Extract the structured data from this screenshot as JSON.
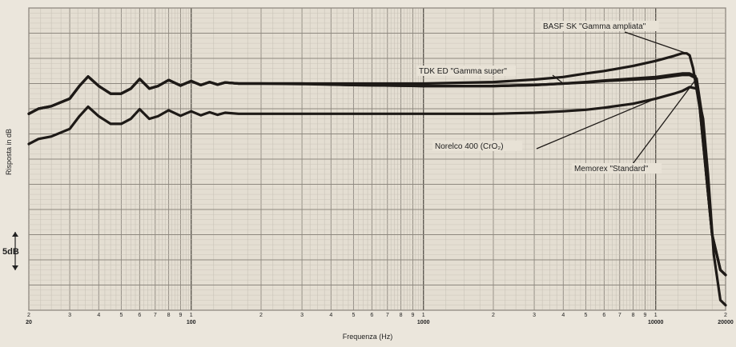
{
  "chart_data": {
    "type": "line",
    "title": "",
    "xlabel": "Frequenza (Hz)",
    "ylabel": "Risposta in dB",
    "x_scale": "log",
    "xlim": [
      20,
      20000
    ],
    "ylim": [
      -45,
      15
    ],
    "grid": true,
    "scale_marker": "5dB",
    "x_ticks": [
      {
        "value": 20,
        "label": "2\n20"
      },
      {
        "value": 30,
        "label": "3"
      },
      {
        "value": 40,
        "label": "4"
      },
      {
        "value": 50,
        "label": "5"
      },
      {
        "value": 60,
        "label": "6"
      },
      {
        "value": 70,
        "label": "7"
      },
      {
        "value": 80,
        "label": "8"
      },
      {
        "value": 90,
        "label": "9"
      },
      {
        "value": 100,
        "label": "1\n100"
      },
      {
        "value": 200,
        "label": "2"
      },
      {
        "value": 300,
        "label": "3"
      },
      {
        "value": 400,
        "label": "4"
      },
      {
        "value": 500,
        "label": "5"
      },
      {
        "value": 600,
        "label": "6"
      },
      {
        "value": 700,
        "label": "7"
      },
      {
        "value": 800,
        "label": "8"
      },
      {
        "value": 900,
        "label": "9"
      },
      {
        "value": 1000,
        "label": "1\n1000"
      },
      {
        "value": 2000,
        "label": "2"
      },
      {
        "value": 3000,
        "label": "3"
      },
      {
        "value": 4000,
        "label": "4"
      },
      {
        "value": 5000,
        "label": "5"
      },
      {
        "value": 6000,
        "label": "6"
      },
      {
        "value": 7000,
        "label": "7"
      },
      {
        "value": 8000,
        "label": "8"
      },
      {
        "value": 9000,
        "label": "9"
      },
      {
        "value": 10000,
        "label": "1\n10000"
      },
      {
        "value": 20000,
        "label": "2\n20000"
      }
    ],
    "series": [
      {
        "name": "BASF SK \"Gamma ampliata\"",
        "color": "#1e1a17",
        "points": [
          [
            20,
            -6
          ],
          [
            22,
            -5
          ],
          [
            25,
            -4.5
          ],
          [
            30,
            -3
          ],
          [
            33,
            -0.5
          ],
          [
            36,
            1.4
          ],
          [
            40,
            -0.5
          ],
          [
            45,
            -2
          ],
          [
            50,
            -2
          ],
          [
            55,
            -1
          ],
          [
            60,
            0.9
          ],
          [
            66,
            -1
          ],
          [
            72,
            -0.5
          ],
          [
            80,
            0.7
          ],
          [
            90,
            -0.4
          ],
          [
            100,
            0.5
          ],
          [
            110,
            -0.3
          ],
          [
            120,
            0.3
          ],
          [
            130,
            -0.2
          ],
          [
            140,
            0.2
          ],
          [
            160,
            0
          ],
          [
            200,
            0
          ],
          [
            300,
            0
          ],
          [
            500,
            0
          ],
          [
            1000,
            0
          ],
          [
            2000,
            0.3
          ],
          [
            3000,
            0.8
          ],
          [
            4000,
            1.3
          ],
          [
            5000,
            2
          ],
          [
            6000,
            2.5
          ],
          [
            8000,
            3.5
          ],
          [
            10000,
            4.5
          ],
          [
            12000,
            5.5
          ],
          [
            13000,
            6
          ],
          [
            13600,
            6
          ],
          [
            14000,
            5.6
          ],
          [
            14500,
            3
          ],
          [
            15500,
            -5
          ],
          [
            16500,
            -18
          ],
          [
            17500,
            -30
          ],
          [
            19000,
            -37
          ],
          [
            20000,
            -38
          ]
        ]
      },
      {
        "name": "TDK ED \"Gamma super\"",
        "color": "#1e1a17",
        "points": [
          [
            20,
            -6
          ],
          [
            22,
            -5
          ],
          [
            25,
            -4.5
          ],
          [
            30,
            -3
          ],
          [
            33,
            -0.5
          ],
          [
            36,
            1.4
          ],
          [
            40,
            -0.5
          ],
          [
            45,
            -2
          ],
          [
            50,
            -2
          ],
          [
            55,
            -1
          ],
          [
            60,
            0.9
          ],
          [
            66,
            -1
          ],
          [
            72,
            -0.5
          ],
          [
            80,
            0.7
          ],
          [
            90,
            -0.4
          ],
          [
            100,
            0.5
          ],
          [
            110,
            -0.3
          ],
          [
            120,
            0.3
          ],
          [
            130,
            -0.2
          ],
          [
            140,
            0.2
          ],
          [
            160,
            0
          ],
          [
            200,
            0
          ],
          [
            300,
            -0.1
          ],
          [
            500,
            -0.3
          ],
          [
            1000,
            -0.5
          ],
          [
            2000,
            -0.5
          ],
          [
            3000,
            -0.3
          ],
          [
            4000,
            0
          ],
          [
            5000,
            0.3
          ],
          [
            6000,
            0.6
          ],
          [
            8000,
            1
          ],
          [
            10000,
            1.3
          ],
          [
            12000,
            1.8
          ],
          [
            13000,
            2
          ],
          [
            14000,
            2
          ],
          [
            14800,
            1.5
          ],
          [
            15500,
            -5
          ],
          [
            16500,
            -18
          ],
          [
            17500,
            -30
          ],
          [
            19000,
            -37
          ],
          [
            20000,
            -38
          ]
        ]
      },
      {
        "name": "Memorex \"Standard\"",
        "color": "#1e1a17",
        "points": [
          [
            20,
            -6
          ],
          [
            22,
            -5
          ],
          [
            25,
            -4.5
          ],
          [
            30,
            -3
          ],
          [
            33,
            -0.5
          ],
          [
            36,
            1.4
          ],
          [
            40,
            -0.5
          ],
          [
            45,
            -2
          ],
          [
            50,
            -2
          ],
          [
            55,
            -1
          ],
          [
            60,
            0.9
          ],
          [
            66,
            -1
          ],
          [
            72,
            -0.5
          ],
          [
            80,
            0.7
          ],
          [
            90,
            -0.4
          ],
          [
            100,
            0.5
          ],
          [
            110,
            -0.3
          ],
          [
            120,
            0.3
          ],
          [
            130,
            -0.2
          ],
          [
            140,
            0.2
          ],
          [
            160,
            0
          ],
          [
            200,
            0
          ],
          [
            300,
            0
          ],
          [
            500,
            -0.3
          ],
          [
            1000,
            -0.5
          ],
          [
            2000,
            -0.5
          ],
          [
            3000,
            -0.3
          ],
          [
            4000,
            0
          ],
          [
            5000,
            0.2
          ],
          [
            6000,
            0.5
          ],
          [
            8000,
            0.8
          ],
          [
            10000,
            1
          ],
          [
            12000,
            1.5
          ],
          [
            13000,
            1.7
          ],
          [
            14000,
            1.7
          ],
          [
            15000,
            1
          ],
          [
            15800,
            -6
          ],
          [
            16500,
            -18
          ],
          [
            17500,
            -30
          ],
          [
            19000,
            -37
          ],
          [
            20000,
            -38
          ]
        ]
      },
      {
        "name": "Norelco 400 (CrO₂)",
        "color": "#1e1a17",
        "points": [
          [
            20,
            -12
          ],
          [
            22,
            -11
          ],
          [
            25,
            -10.5
          ],
          [
            30,
            -9
          ],
          [
            33,
            -6.5
          ],
          [
            36,
            -4.6
          ],
          [
            40,
            -6.5
          ],
          [
            45,
            -8
          ],
          [
            50,
            -8
          ],
          [
            55,
            -7
          ],
          [
            60,
            -5.1
          ],
          [
            66,
            -7
          ],
          [
            72,
            -6.5
          ],
          [
            80,
            -5.3
          ],
          [
            90,
            -6.4
          ],
          [
            100,
            -5.5
          ],
          [
            110,
            -6.3
          ],
          [
            120,
            -5.7
          ],
          [
            130,
            -6.2
          ],
          [
            140,
            -5.8
          ],
          [
            160,
            -6
          ],
          [
            200,
            -6
          ],
          [
            300,
            -6
          ],
          [
            500,
            -6
          ],
          [
            1000,
            -6
          ],
          [
            2000,
            -6
          ],
          [
            3000,
            -5.8
          ],
          [
            4000,
            -5.5
          ],
          [
            5000,
            -5.2
          ],
          [
            6000,
            -4.8
          ],
          [
            8000,
            -4
          ],
          [
            10000,
            -3
          ],
          [
            12000,
            -2
          ],
          [
            13000,
            -1.5
          ],
          [
            14000,
            -0.7
          ],
          [
            15000,
            -1
          ],
          [
            16000,
            -7
          ],
          [
            16800,
            -18
          ],
          [
            17800,
            -34
          ],
          [
            19000,
            -43
          ],
          [
            20000,
            -44
          ]
        ]
      }
    ],
    "annotations": [
      {
        "series": 0,
        "text": "BASF SK \"Gamma ampliata\""
      },
      {
        "series": 1,
        "text": "TDK ED \"Gamma super\""
      },
      {
        "series": 3,
        "text": "Norelco 400 (CrO₂)"
      },
      {
        "series": 2,
        "text": "Memorex \"Standard\""
      }
    ]
  }
}
